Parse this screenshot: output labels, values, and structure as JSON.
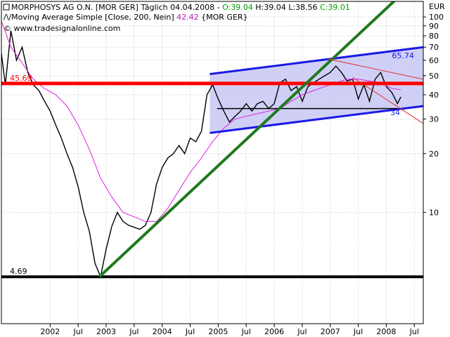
{
  "header": {
    "instrument": "MORPHOSYS AG O.N. [MOR GER]",
    "period": "Täglich",
    "date": "04.04.2008",
    "ohlc_sep": " - ",
    "open": "O:39.04",
    "high": "H:39.04",
    "low": "L:38.56",
    "close": "C:39.01",
    "ma_label": "Moving Average Simple [Close, 200, Nein]",
    "ma_value": "42.42",
    "ma_symbol": "{MOR GER}",
    "source": "© www.tradesignalonline.com"
  },
  "colors": {
    "price": "#000000",
    "ma": "#e020e0",
    "up_value": "#00a000",
    "ma_value": "#c020c0",
    "channel_fill": "#c8c8f4",
    "channel_line": "#1a1ae6",
    "trendline": "#1e7a1e",
    "resistance": "#ff0000",
    "support": "#000000",
    "thin_red": "#e03030"
  },
  "chart_data": {
    "type": "line",
    "title": "MORPHOSYS AG O.N. [MOR GER] Täglich 04.04.2008",
    "ylabel": "EUR",
    "yscale": "log",
    "ylim": [
      2.7,
      120
    ],
    "xlim": [
      2001.13,
      2008.66
    ],
    "y_ticks": [
      10,
      20,
      30,
      40,
      50,
      60,
      70,
      80,
      90,
      100
    ],
    "x_ticks": [
      "2002",
      "Jul",
      "2003",
      "Jul",
      "2004",
      "Jul",
      "2005",
      "Jul",
      "2006",
      "Jul",
      "2007",
      "Jul",
      "2008",
      "Jul"
    ],
    "series": [
      {
        "name": "MORPHOSYS AG O.N. [MOR GER]",
        "x": [
          2001.13,
          2001.2,
          2001.3,
          2001.4,
          2001.5,
          2001.6,
          2001.7,
          2001.8,
          2001.9,
          2002.0,
          2002.1,
          2002.2,
          2002.3,
          2002.4,
          2002.5,
          2002.6,
          2002.7,
          2002.8,
          2002.9,
          2003.0,
          2003.1,
          2003.2,
          2003.3,
          2003.4,
          2003.5,
          2003.6,
          2003.7,
          2003.8,
          2003.9,
          2004.0,
          2004.1,
          2004.2,
          2004.3,
          2004.4,
          2004.5,
          2004.6,
          2004.7,
          2004.8,
          2004.9,
          2005.0,
          2005.1,
          2005.2,
          2005.3,
          2005.4,
          2005.5,
          2005.6,
          2005.7,
          2005.8,
          2005.9,
          2006.0,
          2006.1,
          2006.2,
          2006.3,
          2006.4,
          2006.5,
          2006.6,
          2006.7,
          2006.8,
          2006.9,
          2007.0,
          2007.1,
          2007.2,
          2007.3,
          2007.4,
          2007.5,
          2007.6,
          2007.7,
          2007.8,
          2007.9,
          2008.0,
          2008.1,
          2008.2,
          2008.26
        ],
        "values": [
          65,
          45,
          85,
          60,
          70,
          52,
          45,
          42,
          37,
          33,
          28,
          24,
          20,
          17,
          13.5,
          10,
          8,
          5.5,
          4.69,
          6.5,
          8.5,
          10,
          9,
          8.6,
          8.4,
          8.2,
          8.6,
          10,
          14,
          17,
          19,
          20,
          22,
          20,
          24,
          23,
          26,
          40,
          45,
          38,
          33,
          29,
          31,
          33,
          36,
          33,
          36,
          37,
          34,
          36,
          46,
          48,
          42,
          44,
          37,
          44,
          46,
          48,
          50,
          52,
          56,
          52,
          47,
          48,
          38,
          45,
          37,
          48,
          52,
          44,
          41,
          36,
          39.01
        ]
      },
      {
        "name": "Moving Average Simple [Close, 200, Nein]",
        "x": [
          2001.13,
          2001.3,
          2001.5,
          2001.7,
          2001.9,
          2002.1,
          2002.3,
          2002.5,
          2002.7,
          2002.9,
          2003.1,
          2003.3,
          2003.5,
          2003.7,
          2003.9,
          2004.1,
          2004.3,
          2004.5,
          2004.7,
          2004.9,
          2005.1,
          2005.3,
          2005.5,
          2005.7,
          2005.9,
          2006.1,
          2006.3,
          2006.5,
          2006.7,
          2006.9,
          2007.1,
          2007.3,
          2007.5,
          2007.7,
          2007.9,
          2008.1,
          2008.26
        ],
        "values": [
          95,
          70,
          58,
          48,
          43,
          40,
          35,
          28,
          21,
          15,
          12,
          10,
          9.5,
          9,
          9,
          10.5,
          13,
          16,
          19,
          23,
          27,
          30,
          31,
          32,
          33,
          34,
          37,
          40,
          42,
          44,
          46,
          48,
          48,
          47,
          46,
          43,
          42.42
        ]
      }
    ],
    "annotations": [
      {
        "type": "hline",
        "y": 45.69,
        "label": "45.69",
        "color": "red"
      },
      {
        "type": "hline",
        "y": 4.69,
        "label": "4.69",
        "color": "black"
      },
      {
        "type": "hline",
        "y": 34,
        "x_from": 2004.98,
        "x_to": 2008.2,
        "color": "black"
      },
      {
        "type": "trendline",
        "from": [
          2002.88,
          4.69
        ],
        "to": [
          2008.55,
          155
        ],
        "color": "green"
      },
      {
        "type": "channel",
        "upper_from": [
          2004.85,
          51
        ],
        "upper_to": [
          2008.66,
          70
        ],
        "lower_from": [
          2004.85,
          25.5
        ],
        "lower_to": [
          2008.66,
          35
        ],
        "labels": [
          "65.74",
          "34"
        ],
        "color": "blue"
      },
      {
        "type": "trendline",
        "from": [
          2006.95,
          61
        ],
        "to": [
          2008.66,
          48
        ],
        "color": "red"
      },
      {
        "type": "trendline",
        "from": [
          2007.4,
          49
        ],
        "to": [
          2008.66,
          28.5
        ],
        "color": "red"
      }
    ]
  }
}
